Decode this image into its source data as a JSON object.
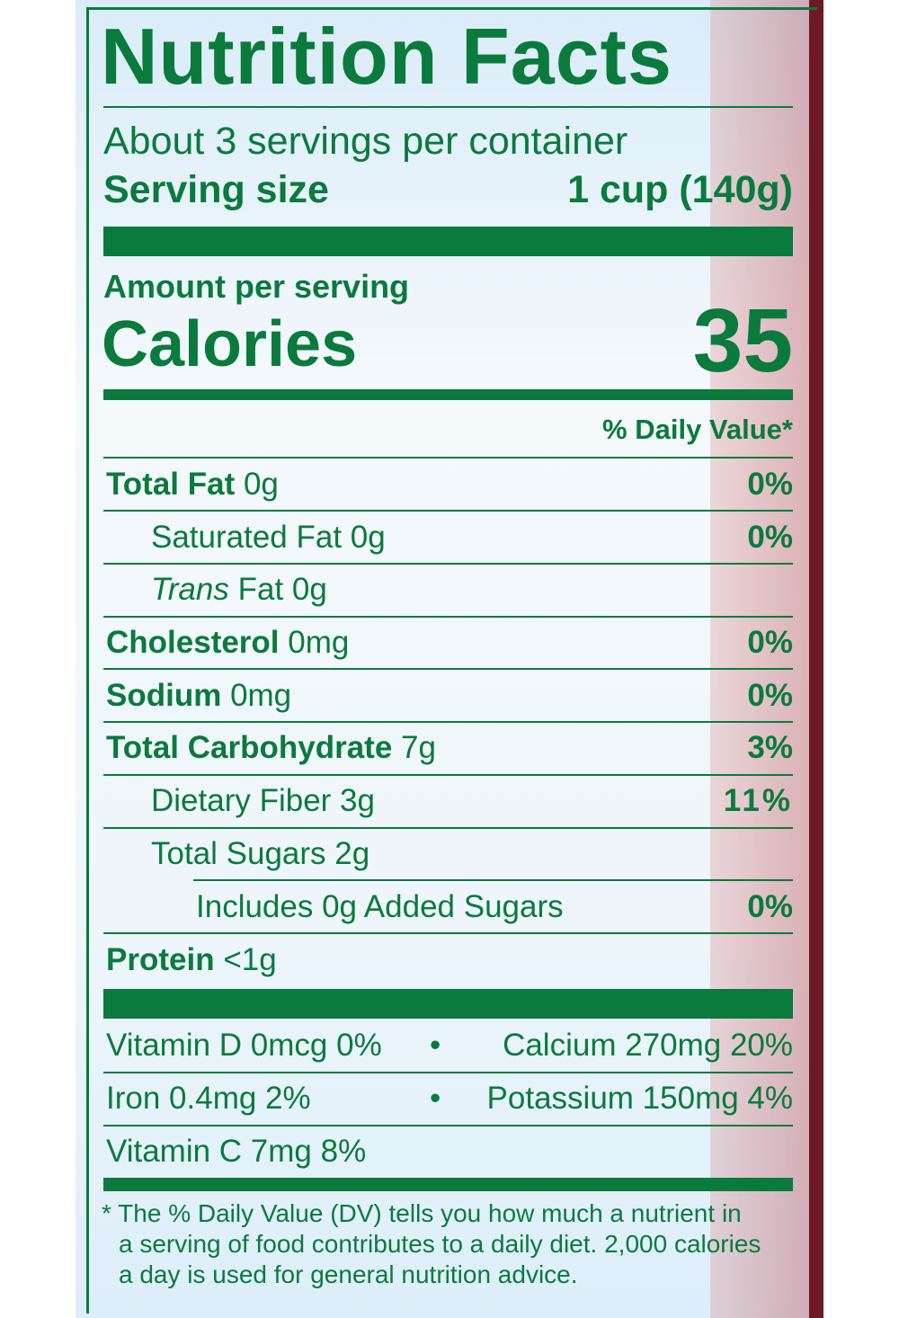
{
  "title": "Nutrition Facts",
  "servings": "About 3 servings per container",
  "serving_size": {
    "label": "Serving size",
    "value": "1 cup (140g)"
  },
  "amount_per_serving": "Amount per serving",
  "calories": {
    "label": "Calories",
    "value": "35"
  },
  "dv_header": "% Daily Value*",
  "nutrients": [
    {
      "name": "Total Fat",
      "amount": "0g",
      "dv": "0%"
    },
    {
      "name": "Saturated Fat 0g",
      "dv": "0%"
    },
    {
      "name": "Trans",
      "amount": "Fat 0g"
    },
    {
      "name": "Cholesterol",
      "amount": "0mg",
      "dv": "0%"
    },
    {
      "name": "Sodium",
      "amount": "0mg",
      "dv": "0%"
    },
    {
      "name": "Total Carbohydrate",
      "amount": "7g",
      "dv": "3%"
    },
    {
      "name": "Dietary Fiber 3g",
      "dv": "11%"
    },
    {
      "name": "Total Sugars 2g"
    },
    {
      "name": "Includes 0g Added Sugars",
      "dv": "0%"
    },
    {
      "name": "Protein",
      "amount": "<1g"
    }
  ],
  "vitamins": [
    [
      "Vitamin D 0mcg 0%",
      "Calcium 270mg 20%"
    ],
    [
      "Iron 0.4mg 2%",
      "Potassium 150mg 4%"
    ],
    [
      "Vitamin C 7mg 8%"
    ]
  ],
  "footnote": [
    "* The % Daily Value (DV) tells you how much a nutrient in",
    "a serving of food contributes to a daily diet. 2,000 calories",
    "a day is used for general nutrition advice."
  ]
}
